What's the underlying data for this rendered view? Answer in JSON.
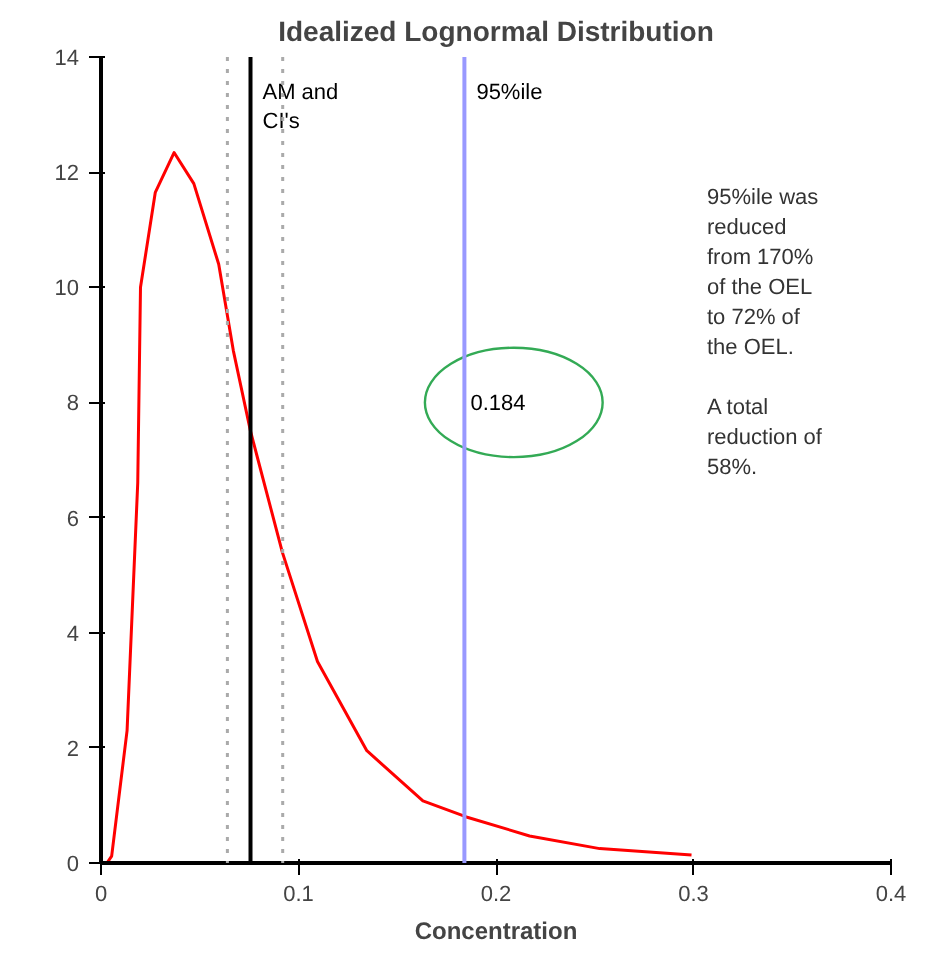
{
  "chart_data": {
    "type": "line",
    "title": "Idealized Lognormal Distribution",
    "xlabel": "Concentration",
    "x": [
      0.003,
      0.0054,
      0.0132,
      0.0186,
      0.02,
      0.0275,
      0.037,
      0.047,
      0.0596,
      0.067,
      0.0757,
      0.0918,
      0.1096,
      0.1346,
      0.163,
      0.185,
      0.217,
      0.2525,
      0.299
    ],
    "series": [
      {
        "color": "#ff0000",
        "values": [
          0,
          0.12,
          2.3,
          6.6,
          10,
          11.65,
          12.34,
          11.8,
          10.4,
          8.9,
          7.5,
          5.4,
          3.5,
          1.95,
          1.08,
          0.8,
          0.47,
          0.25,
          0.14
        ]
      }
    ],
    "xlim": [
      0,
      0.4
    ],
    "xticks": [
      0,
      0.1,
      0.2,
      0.3,
      0.4
    ],
    "ylim": [
      0,
      14
    ],
    "yticks": [
      0,
      2,
      4,
      6,
      8,
      10,
      12,
      14
    ],
    "grid": false,
    "marker": "none",
    "line_style": "solid",
    "ref_lines": [
      {
        "axis": "x",
        "value": 0.064,
        "color": "#aaaaaa",
        "line_style": "dotted"
      },
      {
        "axis": "x",
        "value": 0.0757,
        "label": "AM and\nCI's",
        "color": "#000000",
        "line_style": "solid"
      },
      {
        "axis": "x",
        "value": 0.092,
        "color": "#aaaaaa",
        "line_style": "dotted"
      },
      {
        "axis": "x",
        "value": 0.184,
        "label": "95%ile",
        "color": "#9999ff",
        "line_style": "solid"
      }
    ],
    "annotations": [
      {
        "text": "0.184",
        "x": 0.184,
        "y": 8
      },
      "95%ile was\nreduced\nfrom 170%\nof the OEL\nto 72% of\nthe OEL.\n\nA total\nreduction of\n58%."
    ]
  }
}
